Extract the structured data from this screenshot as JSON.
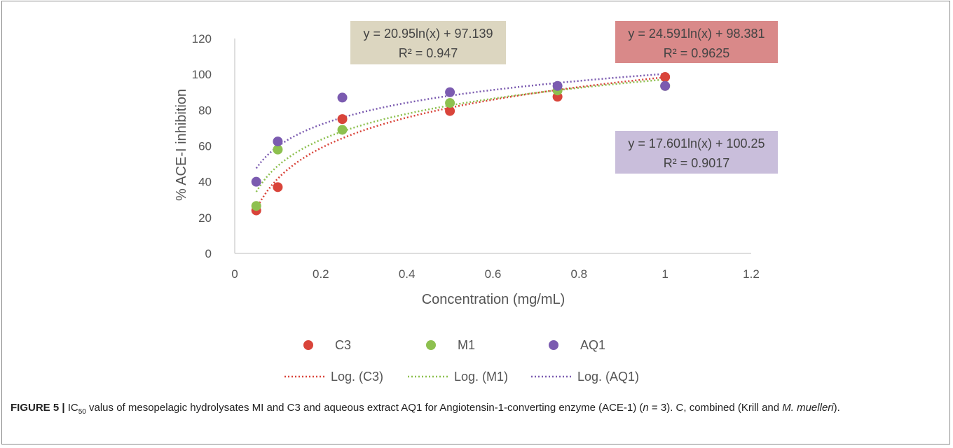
{
  "chart_data": {
    "type": "scatter",
    "xlabel": "Concentration (mg/mL)",
    "ylabel": "% ACE-I inhibition",
    "xlim": [
      0,
      1.2
    ],
    "ylim": [
      0,
      120
    ],
    "xticks": [
      0,
      0.2,
      0.4,
      0.6,
      0.8,
      1,
      1.2
    ],
    "xtick_labels": [
      "0",
      "0.2",
      "0.4",
      "0.6",
      "0.8",
      "1",
      "1.2"
    ],
    "yticks": [
      0,
      20,
      40,
      60,
      80,
      100,
      120
    ],
    "ytick_labels": [
      "0",
      "20",
      "40",
      "60",
      "80",
      "100",
      "120"
    ],
    "grid": false,
    "legend_position": "bottom",
    "series": [
      {
        "name": "C3",
        "color": "#d9443a",
        "x": [
          0.05,
          0.1,
          0.25,
          0.5,
          0.75,
          1
        ],
        "y": [
          24,
          37,
          75,
          79.5,
          87.5,
          98.5
        ],
        "trend": {
          "label": "Log. (C3)",
          "a": 24.591,
          "b": 98.381,
          "equation": "y = 24.591ln(x) + 98.381",
          "r2": "R² = 0.9625",
          "box_color": "#d98989"
        }
      },
      {
        "name": "M1",
        "color": "#8dc04f",
        "x": [
          0.05,
          0.1,
          0.25,
          0.5,
          0.75,
          1
        ],
        "y": [
          26.5,
          58,
          69,
          84,
          91,
          93.5
        ],
        "trend": {
          "label": "Log. (M1)",
          "a": 20.95,
          "b": 97.139,
          "equation": "y = 20.95ln(x) + 97.139",
          "r2": "R² = 0.947",
          "box_color": "#dcd6c0"
        }
      },
      {
        "name": "AQ1",
        "color": "#7b5bb0",
        "x": [
          0.05,
          0.1,
          0.25,
          0.5,
          0.75,
          1
        ],
        "y": [
          40,
          62.5,
          87,
          90,
          93.5,
          93.5
        ],
        "trend": {
          "label": "Log. (AQ1)",
          "a": 17.601,
          "b": 100.25,
          "equation": "y = 17.601ln(x) + 100.25",
          "r2": "R² = 0.9017",
          "box_color": "#c9bedb"
        }
      }
    ]
  },
  "caption": {
    "label": "FIGURE 5 |",
    "ic": "IC",
    "ic_sub": "50",
    "part1": " valus of mesopelagic hydrolysates MI and C3 and aqueous extract AQ1 for Angiotensin-1-converting enzyme (ACE-1) (",
    "n": "n",
    "part2": " = 3). C, combined (Krill and ",
    "species": "M. muelleri",
    "part3": ")."
  }
}
